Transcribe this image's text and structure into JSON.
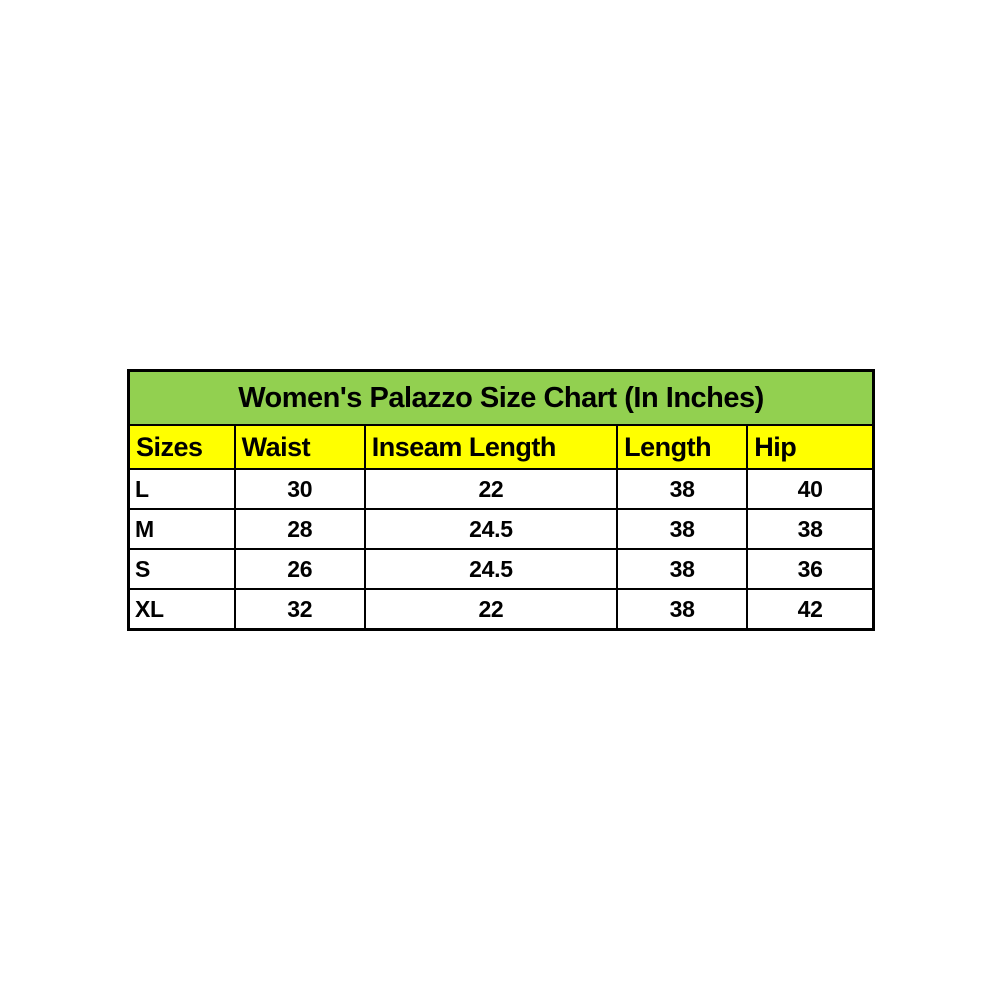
{
  "colors": {
    "page_background": "#ffffff",
    "title_background": "#92d050",
    "header_background": "#ffff00",
    "row_background": "#ffffff",
    "border": "#000000",
    "text": "#000000"
  },
  "chart_data": {
    "type": "table",
    "title": "Women's Palazzo Size Chart (In Inches)",
    "columns": [
      "Sizes",
      "Waist",
      "Inseam Length",
      "Length",
      "Hip"
    ],
    "rows": [
      [
        "L",
        "30",
        "22",
        "38",
        "40"
      ],
      [
        "M",
        "28",
        "24.5",
        "38",
        "38"
      ],
      [
        "S",
        "26",
        "24.5",
        "38",
        "36"
      ],
      [
        "XL",
        "32",
        "22",
        "38",
        "42"
      ]
    ],
    "units": "inches",
    "layout": {
      "title_row": "green banner, centered bold text",
      "header_row": "yellow, left-aligned bold text",
      "data_rows": "white, size column left-aligned, numeric columns centered",
      "grid": "black borders on all cells"
    }
  }
}
